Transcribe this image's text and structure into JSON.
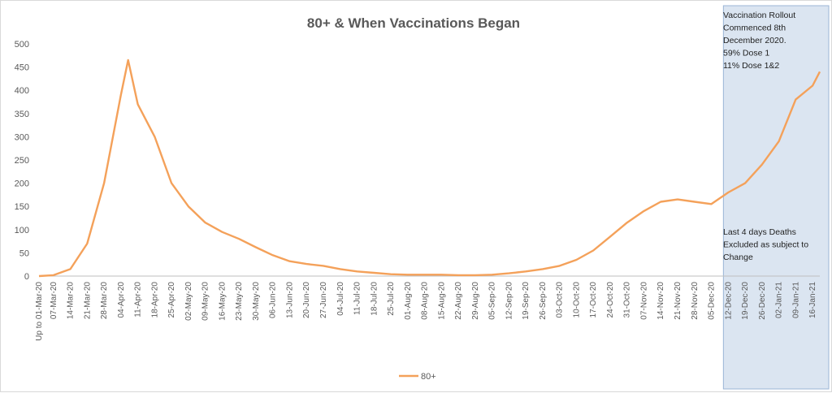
{
  "chart_data": {
    "type": "line",
    "title": "80+ & When Vaccinations Began",
    "xlabel": "",
    "ylabel": "",
    "ylim": [
      0,
      500
    ],
    "yticks": [
      0,
      50,
      100,
      150,
      200,
      250,
      300,
      350,
      400,
      450,
      500
    ],
    "grid": false,
    "legend_position": "bottom",
    "colors": {
      "line": "#f4a15a",
      "shade": "#dbe5f1",
      "shade_border": "#9bb5d6"
    },
    "x_labels": [
      "Up to 01-Mar-20",
      "07-Mar-20",
      "14-Mar-20",
      "21-Mar-20",
      "28-Mar-20",
      "04-Apr-20",
      "11-Apr-20",
      "18-Apr-20",
      "25-Apr-20",
      "02-May-20",
      "09-May-20",
      "16-May-20",
      "23-May-20",
      "30-May-20",
      "06-Jun-20",
      "13-Jun-20",
      "20-Jun-20",
      "27-Jun-20",
      "04-Jul-20",
      "11-Jul-20",
      "18-Jul-20",
      "25-Jul-20",
      "01-Aug-20",
      "08-Aug-20",
      "15-Aug-20",
      "22-Aug-20",
      "29-Aug-20",
      "05-Sep-20",
      "12-Sep-20",
      "19-Sep-20",
      "26-Sep-20",
      "03-Oct-20",
      "10-Oct-20",
      "17-Oct-20",
      "24-Oct-20",
      "31-Oct-20",
      "07-Nov-20",
      "14-Nov-20",
      "21-Nov-20",
      "28-Nov-20",
      "05-Dec-20",
      "12-Dec-20",
      "19-Dec-20",
      "26-Dec-20",
      "02-Jan-21",
      "09-Jan-21",
      "16-Jan-21"
    ],
    "series": [
      {
        "name": "80+",
        "weekly_points": [
          {
            "x": "Up to 01-Mar-20",
            "y": 0
          },
          {
            "x": "07-Mar-20",
            "y": 2
          },
          {
            "x": "14-Mar-20",
            "y": 15
          },
          {
            "x": "21-Mar-20",
            "y": 70
          },
          {
            "x": "28-Mar-20",
            "y": 200
          },
          {
            "x": "04-Apr-20",
            "y": 390
          },
          {
            "x": "07-Apr-20",
            "y": 465
          },
          {
            "x": "11-Apr-20",
            "y": 370
          },
          {
            "x": "18-Apr-20",
            "y": 300
          },
          {
            "x": "25-Apr-20",
            "y": 200
          },
          {
            "x": "02-May-20",
            "y": 150
          },
          {
            "x": "09-May-20",
            "y": 115
          },
          {
            "x": "16-May-20",
            "y": 95
          },
          {
            "x": "23-May-20",
            "y": 80
          },
          {
            "x": "30-May-20",
            "y": 62
          },
          {
            "x": "06-Jun-20",
            "y": 45
          },
          {
            "x": "13-Jun-20",
            "y": 32
          },
          {
            "x": "20-Jun-20",
            "y": 26
          },
          {
            "x": "27-Jun-20",
            "y": 22
          },
          {
            "x": "04-Jul-20",
            "y": 15
          },
          {
            "x": "11-Jul-20",
            "y": 10
          },
          {
            "x": "18-Jul-20",
            "y": 7
          },
          {
            "x": "25-Jul-20",
            "y": 4
          },
          {
            "x": "01-Aug-20",
            "y": 3
          },
          {
            "x": "08-Aug-20",
            "y": 3
          },
          {
            "x": "15-Aug-20",
            "y": 3
          },
          {
            "x": "22-Aug-20",
            "y": 2
          },
          {
            "x": "29-Aug-20",
            "y": 2
          },
          {
            "x": "05-Sep-20",
            "y": 3
          },
          {
            "x": "12-Sep-20",
            "y": 6
          },
          {
            "x": "19-Sep-20",
            "y": 10
          },
          {
            "x": "26-Sep-20",
            "y": 15
          },
          {
            "x": "03-Oct-20",
            "y": 22
          },
          {
            "x": "10-Oct-20",
            "y": 35
          },
          {
            "x": "17-Oct-20",
            "y": 55
          },
          {
            "x": "24-Oct-20",
            "y": 85
          },
          {
            "x": "31-Oct-20",
            "y": 115
          },
          {
            "x": "07-Nov-20",
            "y": 140
          },
          {
            "x": "14-Nov-20",
            "y": 160
          },
          {
            "x": "21-Nov-20",
            "y": 165
          },
          {
            "x": "28-Nov-20",
            "y": 160
          },
          {
            "x": "05-Dec-20",
            "y": 155
          },
          {
            "x": "12-Dec-20",
            "y": 180
          },
          {
            "x": "19-Dec-20",
            "y": 200
          },
          {
            "x": "26-Dec-20",
            "y": 240
          },
          {
            "x": "02-Jan-21",
            "y": 290
          },
          {
            "x": "09-Jan-21",
            "y": 380
          },
          {
            "x": "16-Jan-21",
            "y": 410
          },
          {
            "x": "19-Jan-21",
            "y": 440
          }
        ]
      }
    ],
    "shaded_region": {
      "from": "10-Dec-20",
      "to": "19-Jan-21"
    },
    "annotations": {
      "top": [
        "Vaccination Rollout",
        "Commenced 8th",
        "December 2020.",
        "59% Dose 1",
        "11% Dose 1&2"
      ],
      "middle": [
        "Last 4 days Deaths",
        "Excluded as subject to",
        "Change"
      ]
    }
  }
}
